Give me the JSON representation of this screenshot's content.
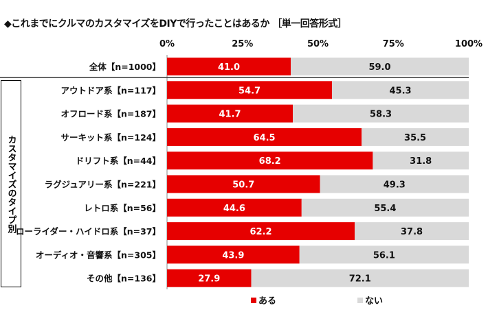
{
  "chart_data": {
    "type": "bar",
    "orientation": "horizontal-stacked-100",
    "title": "◆これまでにクルマのカスタマイズをDIYで行ったことはあるか ［単一回答形式］",
    "group_label": "カスタマイズのタイプ別",
    "x_ticks": [
      "0%",
      "25%",
      "50%",
      "75%",
      "100%"
    ],
    "xlim": [
      0,
      100
    ],
    "categories": [
      "全体【n=1000】",
      "アウトドア系【n=117】",
      "オフロード系【n=187】",
      "サーキット系【n=124】",
      "ドリフト系【n=44】",
      "ラグジュアリー系【n=221】",
      "レトロ系【n=56】",
      "ローライダー・ハイドロ系【n=37】",
      "オーディオ・音響系【n=305】",
      "その他【n=136】"
    ],
    "series": [
      {
        "name": "ある",
        "color": "#e60000",
        "values": [
          41.0,
          54.7,
          41.7,
          64.5,
          68.2,
          50.7,
          44.6,
          62.2,
          43.9,
          27.9
        ],
        "labels": [
          "41.0",
          "54.7",
          "41.7",
          "64.5",
          "68.2",
          "50.7",
          "44.6",
          "62.2",
          "43.9",
          "27.9"
        ]
      },
      {
        "name": "ない",
        "color": "#d9d9d9",
        "values": [
          59.0,
          45.3,
          58.3,
          35.5,
          31.8,
          49.3,
          55.4,
          37.8,
          56.1,
          72.1
        ],
        "labels": [
          "59.0",
          "45.3",
          "58.3",
          "35.5",
          "31.8",
          "49.3",
          "55.4",
          "37.8",
          "56.1",
          "72.1"
        ]
      }
    ],
    "legend": "bottom"
  }
}
